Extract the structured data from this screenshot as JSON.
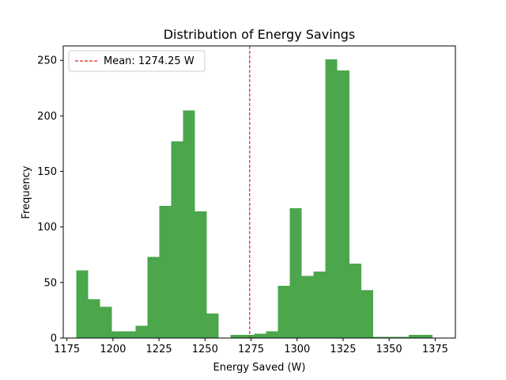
{
  "chart_data": {
    "type": "bar",
    "title": "Distribution of Energy Savings",
    "xlabel": "Energy Saved (W)",
    "ylabel": "Frequency",
    "xlim": [
      1173,
      1386
    ],
    "ylim": [
      0,
      263
    ],
    "xticks": [
      1175,
      1200,
      1225,
      1250,
      1275,
      1300,
      1325,
      1350,
      1375
    ],
    "yticks": [
      0,
      50,
      100,
      150,
      200,
      250
    ],
    "bin_width": 6.45,
    "bins": [
      {
        "x0": 1180.0,
        "x1": 1186.45,
        "count": 61
      },
      {
        "x0": 1186.45,
        "x1": 1192.9,
        "count": 35
      },
      {
        "x0": 1192.9,
        "x1": 1199.35,
        "count": 28
      },
      {
        "x0": 1199.35,
        "x1": 1205.8,
        "count": 6
      },
      {
        "x0": 1205.8,
        "x1": 1212.25,
        "count": 6
      },
      {
        "x0": 1212.25,
        "x1": 1218.7,
        "count": 11
      },
      {
        "x0": 1218.7,
        "x1": 1225.15,
        "count": 73
      },
      {
        "x0": 1225.15,
        "x1": 1231.6,
        "count": 119
      },
      {
        "x0": 1231.6,
        "x1": 1238.05,
        "count": 177
      },
      {
        "x0": 1238.05,
        "x1": 1244.5,
        "count": 205
      },
      {
        "x0": 1244.5,
        "x1": 1250.95,
        "count": 114
      },
      {
        "x0": 1250.95,
        "x1": 1257.4,
        "count": 22
      },
      {
        "x0": 1257.4,
        "x1": 1263.85,
        "count": 0
      },
      {
        "x0": 1263.85,
        "x1": 1270.3,
        "count": 3
      },
      {
        "x0": 1270.3,
        "x1": 1276.75,
        "count": 3
      },
      {
        "x0": 1276.75,
        "x1": 1283.2,
        "count": 4
      },
      {
        "x0": 1283.2,
        "x1": 1289.65,
        "count": 6
      },
      {
        "x0": 1289.65,
        "x1": 1296.1,
        "count": 47
      },
      {
        "x0": 1296.1,
        "x1": 1302.55,
        "count": 117
      },
      {
        "x0": 1302.55,
        "x1": 1309.0,
        "count": 56
      },
      {
        "x0": 1309.0,
        "x1": 1315.45,
        "count": 60
      },
      {
        "x0": 1315.45,
        "x1": 1321.9,
        "count": 251
      },
      {
        "x0": 1321.9,
        "x1": 1328.35,
        "count": 241
      },
      {
        "x0": 1328.35,
        "x1": 1334.8,
        "count": 67
      },
      {
        "x0": 1334.8,
        "x1": 1341.25,
        "count": 43
      },
      {
        "x0": 1341.25,
        "x1": 1347.7,
        "count": 1
      },
      {
        "x0": 1347.7,
        "x1": 1354.15,
        "count": 1
      },
      {
        "x0": 1354.15,
        "x1": 1360.6,
        "count": 1
      },
      {
        "x0": 1360.6,
        "x1": 1367.05,
        "count": 3
      },
      {
        "x0": 1367.05,
        "x1": 1373.5,
        "count": 3
      }
    ],
    "bar_color": "#4ca64c",
    "mean": {
      "value": 1274.25,
      "label": "Mean: 1274.25 W",
      "color": "#e8211e",
      "style": "dashed"
    },
    "legend_position": "top-left",
    "grid": false
  }
}
